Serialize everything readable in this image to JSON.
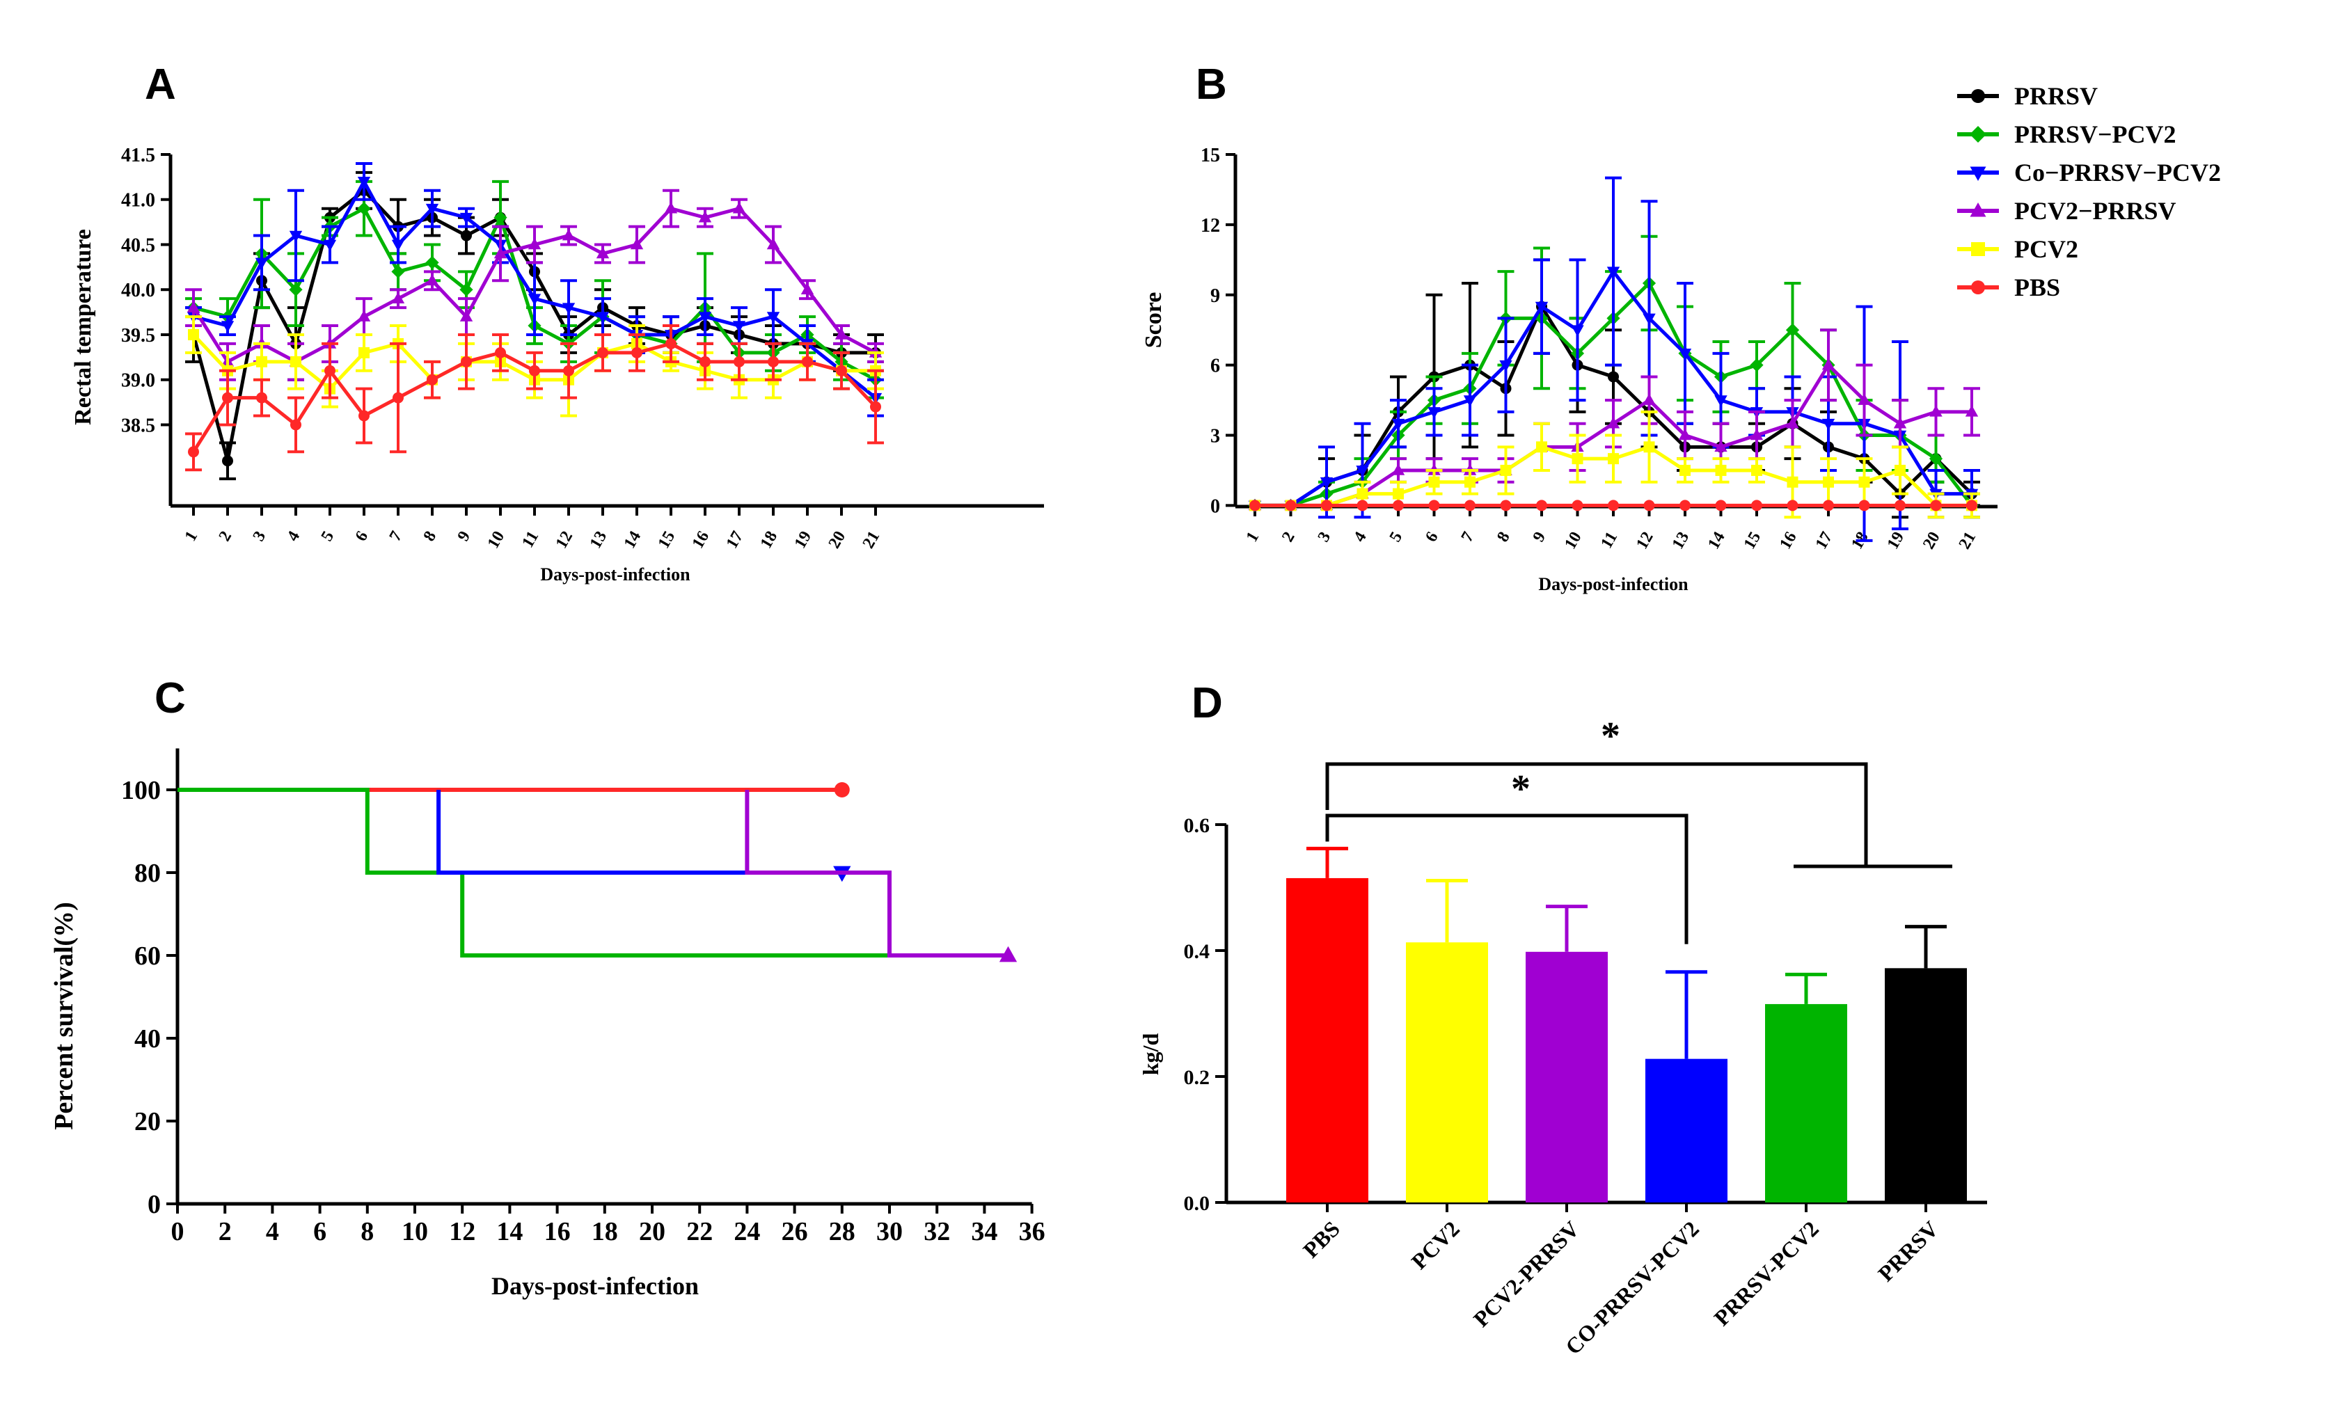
{
  "legend": [
    {
      "label": "PRRSV",
      "color": "#000000",
      "marker": "circle"
    },
    {
      "label": "PRRSV−PCV2",
      "color": "#00b400",
      "marker": "diamond"
    },
    {
      "label": "Co−PRRSV−PCV2",
      "color": "#0000ff",
      "marker": "triangle-down"
    },
    {
      "label": "PCV2−PRRSV",
      "color": "#a000d2",
      "marker": "triangle-up"
    },
    {
      "label": "PCV2",
      "color": "#ffff00",
      "marker": "square"
    },
    {
      "label": "PBS",
      "color": "#ff2828",
      "marker": "circle"
    }
  ],
  "chart_data": [
    {
      "panel": "A",
      "type": "line",
      "xlabel": "Days-post-infection",
      "ylabel": "Rectal temperature",
      "x": [
        1,
        2,
        3,
        4,
        5,
        6,
        7,
        8,
        9,
        10,
        11,
        12,
        13,
        14,
        15,
        16,
        17,
        18,
        19,
        20,
        21
      ],
      "ylim": [
        37.6,
        41.5
      ],
      "yticks": [
        38.5,
        39.0,
        39.5,
        40.0,
        40.5,
        41.0,
        41.5
      ],
      "ytick_labels": [
        "38.5",
        "39.0",
        "39.5",
        "40.0",
        "40.5",
        "41.0",
        "41.5"
      ],
      "series": [
        {
          "name": "PRRSV",
          "values": [
            39.5,
            38.1,
            40.1,
            39.4,
            40.8,
            41.1,
            40.7,
            40.8,
            40.6,
            40.8,
            40.2,
            39.5,
            39.8,
            39.6,
            39.5,
            39.6,
            39.5,
            39.4,
            39.4,
            39.3,
            39.3
          ],
          "err": [
            0.3,
            0.2,
            0.3,
            0.4,
            0.1,
            0.2,
            0.3,
            0.2,
            0.2,
            0.2,
            0.2,
            0.2,
            0.2,
            0.2,
            0.2,
            0.2,
            0.2,
            0.2,
            0.2,
            0.2,
            0.2
          ]
        },
        {
          "name": "PRRSV−PCV2",
          "values": [
            39.8,
            39.7,
            40.4,
            40.0,
            40.7,
            40.9,
            40.2,
            40.3,
            40.0,
            40.8,
            39.6,
            39.4,
            39.7,
            39.5,
            39.4,
            39.8,
            39.3,
            39.3,
            39.5,
            39.2,
            39.0
          ],
          "err": [
            0.1,
            0.2,
            0.6,
            0.4,
            0.1,
            0.3,
            0.2,
            0.2,
            0.2,
            0.4,
            0.2,
            0.2,
            0.4,
            0.2,
            0.2,
            0.6,
            0.1,
            0.2,
            0.2,
            0.2,
            0.2
          ]
        },
        {
          "name": "Co−PRRSV−PCV2",
          "values": [
            39.7,
            39.6,
            40.3,
            40.6,
            40.5,
            41.2,
            40.5,
            40.9,
            40.8,
            40.5,
            39.9,
            39.8,
            39.7,
            39.5,
            39.5,
            39.7,
            39.6,
            39.7,
            39.4,
            39.1,
            38.8
          ],
          "err": [
            0.1,
            0.1,
            0.3,
            0.5,
            0.2,
            0.2,
            0.2,
            0.2,
            0.1,
            0.2,
            0.4,
            0.3,
            0.2,
            0.2,
            0.2,
            0.2,
            0.2,
            0.3,
            0.2,
            0.2,
            0.2
          ]
        },
        {
          "name": "PCV2−PRRSV",
          "values": [
            39.8,
            39.2,
            39.4,
            39.2,
            39.4,
            39.7,
            39.9,
            40.1,
            39.7,
            40.4,
            40.5,
            40.6,
            40.4,
            40.5,
            40.9,
            40.8,
            40.9,
            40.5,
            40.0,
            39.5,
            39.3
          ],
          "err": [
            0.2,
            0.2,
            0.2,
            0.2,
            0.2,
            0.2,
            0.1,
            0.1,
            0.2,
            0.3,
            0.2,
            0.1,
            0.1,
            0.2,
            0.2,
            0.1,
            0.1,
            0.2,
            0.1,
            0.1,
            0.1
          ]
        },
        {
          "name": "PCV2",
          "values": [
            39.5,
            39.1,
            39.2,
            39.2,
            38.9,
            39.3,
            39.4,
            39.0,
            39.2,
            39.2,
            39.0,
            39.0,
            39.3,
            39.4,
            39.2,
            39.1,
            39.0,
            39.0,
            39.2,
            39.1,
            39.1
          ],
          "err": [
            0.2,
            0.2,
            0.2,
            0.3,
            0.2,
            0.2,
            0.2,
            0.2,
            0.2,
            0.2,
            0.2,
            0.4,
            0.2,
            0.2,
            0.1,
            0.2,
            0.2,
            0.2,
            0.2,
            0.2,
            0.2
          ]
        },
        {
          "name": "PBS",
          "values": [
            38.2,
            38.8,
            38.8,
            38.5,
            39.1,
            38.6,
            38.8,
            39.0,
            39.2,
            39.3,
            39.1,
            39.1,
            39.3,
            39.3,
            39.4,
            39.2,
            39.2,
            39.2,
            39.2,
            39.1,
            38.7
          ],
          "err": [
            0.2,
            0.3,
            0.2,
            0.3,
            0.3,
            0.3,
            0.6,
            0.2,
            0.3,
            0.2,
            0.2,
            0.3,
            0.2,
            0.2,
            0.2,
            0.2,
            0.2,
            0.2,
            0.2,
            0.2,
            0.4
          ]
        }
      ]
    },
    {
      "panel": "B",
      "type": "line",
      "xlabel": "Days-post-infection",
      "ylabel": "Score",
      "x": [
        1,
        2,
        3,
        4,
        5,
        6,
        7,
        8,
        9,
        10,
        11,
        12,
        13,
        14,
        15,
        16,
        17,
        18,
        19,
        20,
        21
      ],
      "ylim": [
        -1,
        15
      ],
      "yticks": [
        0,
        3,
        6,
        9,
        12,
        15
      ],
      "ytick_labels": [
        "0",
        "3",
        "6",
        "9",
        "12",
        "15"
      ],
      "series": [
        {
          "name": "PRRSV",
          "values": [
            0,
            0,
            1,
            1.5,
            4,
            5.5,
            6,
            5,
            8.5,
            6,
            5.5,
            4,
            2.5,
            2.5,
            2.5,
            3.5,
            2.5,
            2,
            0.5,
            2,
            0.5
          ],
          "err": [
            0,
            0,
            1,
            1.5,
            1.5,
            3.5,
            3.5,
            2,
            2,
            2,
            2,
            1.5,
            1,
            1,
            1,
            1.5,
            1.5,
            1,
            1,
            1,
            0.5
          ]
        },
        {
          "name": "PRRSV−PCV2",
          "values": [
            0,
            0,
            0.5,
            1,
            3,
            4.5,
            5,
            8,
            8,
            6.5,
            8,
            9.5,
            6.5,
            5.5,
            6,
            7.5,
            6,
            3,
            3,
            2,
            0
          ],
          "err": [
            0,
            0,
            0.5,
            1,
            1,
            1,
            1.5,
            2,
            3,
            1.5,
            2,
            2,
            2,
            1.5,
            1,
            2,
            1.5,
            1.5,
            1.5,
            1,
            0.5
          ]
        },
        {
          "name": "Co−PRRSV−PCV2",
          "values": [
            0,
            0,
            1,
            1.5,
            3.5,
            4,
            4.5,
            6,
            8.5,
            7.5,
            10,
            8,
            6.5,
            4.5,
            4,
            4,
            3.5,
            3.5,
            3,
            0.5,
            0.5
          ],
          "err": [
            0,
            0,
            1.5,
            2,
            1,
            1,
            1.5,
            2,
            2,
            3,
            4,
            5,
            3,
            2,
            1,
            1.5,
            2,
            5,
            4,
            1,
            1
          ]
        },
        {
          "name": "PCV2−PRRSV",
          "values": [
            0,
            0,
            0,
            0.5,
            1.5,
            1.5,
            1.5,
            1.5,
            2.5,
            2.5,
            3.5,
            4.5,
            3,
            2.5,
            3,
            3.5,
            6,
            4.5,
            3.5,
            4,
            4
          ],
          "err": [
            0,
            0,
            0,
            0.5,
            0.5,
            0.5,
            0.5,
            0.5,
            1,
            1,
            1,
            1,
            1,
            1,
            1,
            1,
            1.5,
            1.5,
            1,
            1,
            1
          ]
        },
        {
          "name": "PCV2",
          "values": [
            0,
            0,
            0,
            0.5,
            0.5,
            1,
            1,
            1.5,
            2.5,
            2,
            2,
            2.5,
            1.5,
            1.5,
            1.5,
            1,
            1,
            1,
            1.5,
            0,
            0
          ],
          "err": [
            0,
            0,
            0,
            0.5,
            0.5,
            0.5,
            0.5,
            1,
            1,
            1,
            1,
            1.5,
            0.5,
            0.5,
            0.5,
            1.5,
            1,
            1,
            1,
            0.5,
            0.5
          ]
        },
        {
          "name": "PBS",
          "values": [
            0,
            0,
            0,
            0,
            0,
            0,
            0,
            0,
            0,
            0,
            0,
            0,
            0,
            0,
            0,
            0,
            0,
            0,
            0,
            0,
            0
          ],
          "err": [
            0,
            0,
            0,
            0,
            0,
            0,
            0,
            0,
            0,
            0,
            0,
            0,
            0,
            0,
            0,
            0,
            0,
            0,
            0,
            0,
            0
          ]
        }
      ]
    },
    {
      "panel": "C",
      "type": "survival",
      "xlabel": "Days-post-infection",
      "ylabel": "Percent survival(%)",
      "xlim": [
        0,
        36
      ],
      "ylim": [
        0,
        110
      ],
      "xticks": [
        0,
        2,
        4,
        6,
        8,
        10,
        12,
        14,
        16,
        18,
        20,
        22,
        24,
        26,
        28,
        30,
        32,
        34,
        36
      ],
      "xtick_labels": [
        "0",
        "2",
        "4",
        "6",
        "8",
        "10",
        "12",
        "14",
        "16",
        "18",
        "20",
        "22",
        "24",
        "26",
        "28",
        "30",
        "32",
        "34",
        "36"
      ],
      "yticks": [
        0,
        20,
        40,
        60,
        80,
        100
      ],
      "ytick_labels": [
        "0",
        "20",
        "40",
        "60",
        "80",
        "100"
      ],
      "series": [
        {
          "name": "PBS",
          "color": "#ff2828",
          "steps": [
            [
              0,
              100
            ],
            [
              28,
              100
            ]
          ],
          "end_marker": "circle"
        },
        {
          "name": "PRRSV−PCV2",
          "color": "#00b400",
          "steps": [
            [
              0,
              100
            ],
            [
              8,
              100
            ],
            [
              8,
              80
            ],
            [
              12,
              80
            ],
            [
              12,
              60
            ],
            [
              35,
              60
            ]
          ],
          "end_marker": "none"
        },
        {
          "name": "Co−PRRSV−PCV2",
          "color": "#0000ff",
          "steps": [
            [
              11,
              100
            ],
            [
              11,
              80
            ],
            [
              28,
              80
            ]
          ],
          "end_marker": "triangle-down"
        },
        {
          "name": "PCV2−PRRSV",
          "color": "#a000d2",
          "steps": [
            [
              24,
              100
            ],
            [
              24,
              80
            ],
            [
              30,
              80
            ],
            [
              30,
              60
            ],
            [
              35,
              60
            ]
          ],
          "end_marker": "triangle-up"
        }
      ]
    },
    {
      "panel": "D",
      "type": "bar",
      "ylabel": "kg/d",
      "categories": [
        "PBS",
        "PCV2",
        "PCV2-PRRSV",
        "CO-PRRSV-PCV2",
        "PRRSV-PCV2",
        "PRRSV"
      ],
      "values": [
        0.515,
        0.413,
        0.398,
        0.228,
        0.315,
        0.372
      ],
      "errors": [
        0.047,
        0.098,
        0.072,
        0.138,
        0.047,
        0.066
      ],
      "colors": [
        "#ff0000",
        "#ffff00",
        "#a000d2",
        "#0000ff",
        "#00b400",
        "#000000"
      ],
      "ylim": [
        0,
        0.6
      ],
      "yticks": [
        0.0,
        0.2,
        0.4,
        0.6
      ],
      "ytick_labels": [
        "0.0",
        "0.2",
        "0.4",
        "0.6"
      ],
      "significance": [
        {
          "from": "PBS",
          "to": "CO-PRRSV-PCV2",
          "label": "*"
        },
        {
          "from": "PBS",
          "to": "PRRSV-PCV2 + PRRSV",
          "label": "*"
        }
      ]
    }
  ]
}
